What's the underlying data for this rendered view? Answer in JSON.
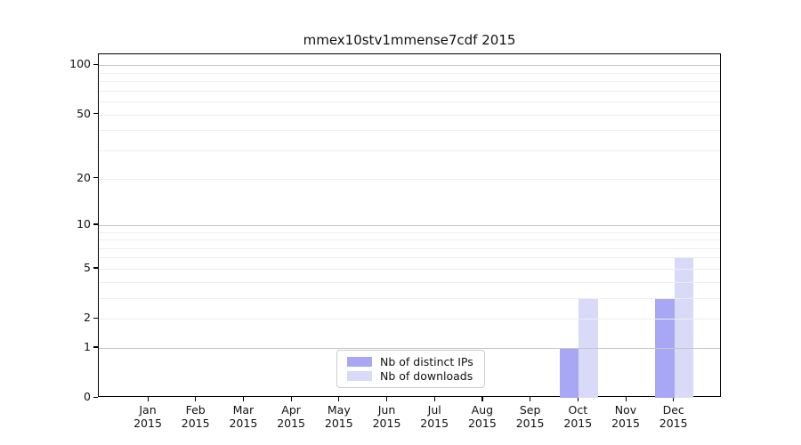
{
  "chart_data": {
    "type": "bar",
    "title": "mmex10stv1mmense7cdf 2015",
    "categories": [
      "Jan",
      "Feb",
      "Mar",
      "Apr",
      "May",
      "Jun",
      "Jul",
      "Aug",
      "Sep",
      "Oct",
      "Nov",
      "Dec"
    ],
    "x_year_label": "2015",
    "series": [
      {
        "name": "Nb of distinct IPs",
        "color": "#a7a7f5",
        "values": [
          0,
          0,
          0,
          0,
          0,
          0,
          0,
          0,
          0,
          1,
          0,
          3
        ]
      },
      {
        "name": "Nb of downloads",
        "color": "#d9d9f8",
        "values": [
          0,
          0,
          0,
          0,
          0,
          0,
          0,
          0,
          0,
          3,
          0,
          6
        ]
      }
    ],
    "xlabel": "",
    "ylabel": "",
    "y_scale": "log1p",
    "ylim": [
      0,
      116.7
    ],
    "y_ticks": [
      0,
      1,
      2,
      5,
      10,
      20,
      50,
      100
    ],
    "grid": {
      "major_values": [
        1,
        10,
        100
      ],
      "minor_values": [
        2,
        3,
        4,
        5,
        6,
        7,
        8,
        9,
        20,
        30,
        40,
        50,
        60,
        70,
        80,
        90
      ],
      "major_color": "#c6c6c6",
      "minor_color": "#eeeeee"
    },
    "legend": {
      "position": "lower center"
    }
  }
}
